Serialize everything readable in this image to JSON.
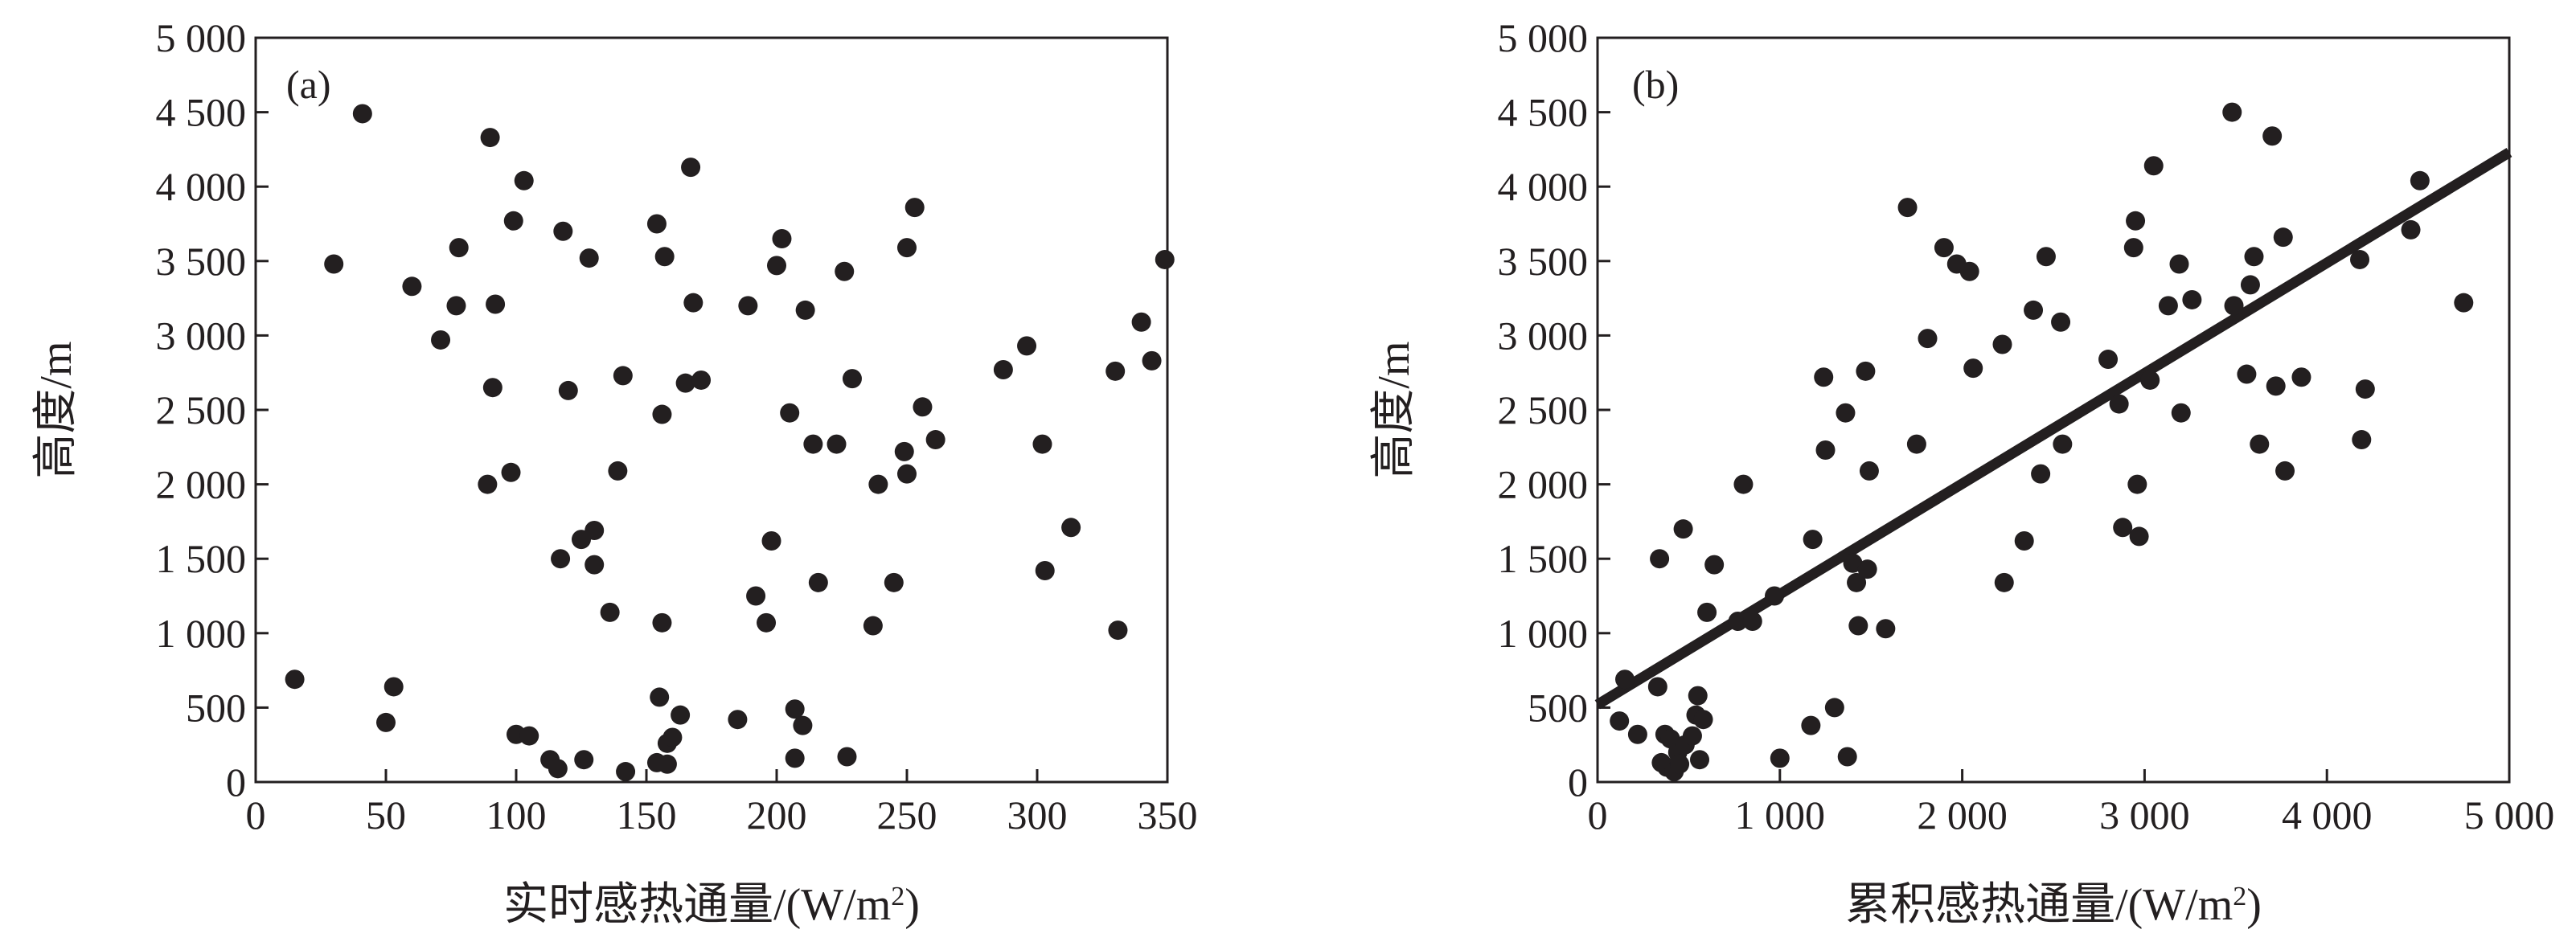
{
  "chart_data": [
    {
      "type": "scatter",
      "panel_label": "(a)",
      "xlabel_main": "实时感热通量/(W/m",
      "xlabel_sup": "2",
      "xlabel_tail": ")",
      "ylabel": "高度/m",
      "xlim": [
        0,
        350
      ],
      "ylim": [
        0,
        5000
      ],
      "xticks": [
        0,
        50,
        100,
        150,
        200,
        250,
        300,
        350
      ],
      "xtick_labels": [
        "0",
        "50",
        "100",
        "150",
        "200",
        "250",
        "300",
        "350"
      ],
      "yticks": [
        0,
        500,
        1000,
        1500,
        2000,
        2500,
        3000,
        3500,
        4000,
        4500,
        5000
      ],
      "ytick_labels": [
        "0",
        "500",
        "1 000",
        "1 500",
        "2 000",
        "2 500",
        "3 000",
        "3 500",
        "4 000",
        "4 500",
        "5 000"
      ],
      "grid": false,
      "points": [
        [
          15,
          690
        ],
        [
          30,
          3480
        ],
        [
          41,
          4490
        ],
        [
          50,
          400
        ],
        [
          53,
          640
        ],
        [
          60,
          3330
        ],
        [
          71,
          2970
        ],
        [
          77,
          3200
        ],
        [
          78,
          3590
        ],
        [
          89,
          2000
        ],
        [
          90,
          4330
        ],
        [
          91,
          2650
        ],
        [
          92,
          3210
        ],
        [
          98,
          2080
        ],
        [
          99,
          3770
        ],
        [
          100,
          320
        ],
        [
          103,
          4040
        ],
        [
          105,
          310
        ],
        [
          113,
          150
        ],
        [
          116,
          90
        ],
        [
          117,
          1500
        ],
        [
          118,
          3700
        ],
        [
          120,
          2630
        ],
        [
          125,
          1630
        ],
        [
          126,
          150
        ],
        [
          128,
          3520
        ],
        [
          130,
          1460
        ],
        [
          130,
          1690
        ],
        [
          136,
          1140
        ],
        [
          139,
          2090
        ],
        [
          141,
          2730
        ],
        [
          142,
          70
        ],
        [
          154,
          3750
        ],
        [
          154,
          130
        ],
        [
          155,
          570
        ],
        [
          156,
          2470
        ],
        [
          156,
          1070
        ],
        [
          157,
          3530
        ],
        [
          158,
          260
        ],
        [
          158,
          120
        ],
        [
          160,
          300
        ],
        [
          163,
          450
        ],
        [
          165,
          2680
        ],
        [
          167,
          4130
        ],
        [
          168,
          3220
        ],
        [
          171,
          2700
        ],
        [
          185,
          420
        ],
        [
          189,
          3200
        ],
        [
          192,
          1250
        ],
        [
          196,
          1070
        ],
        [
          198,
          1620
        ],
        [
          200,
          3470
        ],
        [
          202,
          3650
        ],
        [
          205,
          2480
        ],
        [
          207,
          490
        ],
        [
          207,
          160
        ],
        [
          210,
          380
        ],
        [
          211,
          3170
        ],
        [
          214,
          2270
        ],
        [
          216,
          1340
        ],
        [
          223,
          2270
        ],
        [
          226,
          3430
        ],
        [
          227,
          170
        ],
        [
          229,
          2710
        ],
        [
          237,
          1050
        ],
        [
          239,
          2000
        ],
        [
          245,
          1340
        ],
        [
          249,
          2220
        ],
        [
          250,
          3590
        ],
        [
          250,
          2070
        ],
        [
          253,
          3860
        ],
        [
          256,
          2520
        ],
        [
          261,
          2300
        ],
        [
          287,
          2770
        ],
        [
          296,
          2930
        ],
        [
          302,
          2270
        ],
        [
          303,
          1420
        ],
        [
          313,
          1710
        ],
        [
          330,
          2760
        ],
        [
          331,
          1020
        ],
        [
          340,
          3090
        ],
        [
          344,
          2830
        ],
        [
          349,
          3510
        ]
      ]
    },
    {
      "type": "scatter",
      "panel_label": "(b)",
      "xlabel_main": "累积感热通量/(W/m",
      "xlabel_sup": "2",
      "xlabel_tail": ")",
      "ylabel": "高度/m",
      "xlim": [
        0,
        5000
      ],
      "ylim": [
        0,
        5000
      ],
      "xticks": [
        0,
        1000,
        2000,
        3000,
        4000,
        5000
      ],
      "xtick_labels": [
        "0",
        "1 000",
        "2 000",
        "3 000",
        "4 000",
        "5 000"
      ],
      "yticks": [
        0,
        500,
        1000,
        1500,
        2000,
        2500,
        3000,
        3500,
        4000,
        4500,
        5000
      ],
      "ytick_labels": [
        "0",
        "500",
        "1 000",
        "1 500",
        "2 000",
        "2 500",
        "3 000",
        "3 500",
        "4 000",
        "4 500",
        "5 000"
      ],
      "grid": false,
      "fit_line": {
        "x": [
          0,
          5000
        ],
        "y": [
          520,
          4230
        ]
      },
      "points": [
        [
          120,
          410
        ],
        [
          150,
          690
        ],
        [
          220,
          320
        ],
        [
          330,
          640
        ],
        [
          340,
          1500
        ],
        [
          350,
          130
        ],
        [
          370,
          320
        ],
        [
          380,
          100
        ],
        [
          400,
          290
        ],
        [
          420,
          70
        ],
        [
          440,
          200
        ],
        [
          450,
          120
        ],
        [
          470,
          1700
        ],
        [
          480,
          250
        ],
        [
          520,
          310
        ],
        [
          540,
          450
        ],
        [
          550,
          580
        ],
        [
          560,
          150
        ],
        [
          580,
          420
        ],
        [
          600,
          1140
        ],
        [
          640,
          1460
        ],
        [
          770,
          1080
        ],
        [
          800,
          2000
        ],
        [
          850,
          1080
        ],
        [
          970,
          1250
        ],
        [
          1000,
          160
        ],
        [
          1170,
          380
        ],
        [
          1180,
          1630
        ],
        [
          1240,
          2720
        ],
        [
          1250,
          2230
        ],
        [
          1300,
          500
        ],
        [
          1360,
          2480
        ],
        [
          1370,
          170
        ],
        [
          1400,
          1470
        ],
        [
          1420,
          1340
        ],
        [
          1430,
          1050
        ],
        [
          1470,
          2760
        ],
        [
          1480,
          1430
        ],
        [
          1490,
          2090
        ],
        [
          1580,
          1030
        ],
        [
          1700,
          3860
        ],
        [
          1750,
          2270
        ],
        [
          1810,
          2980
        ],
        [
          1900,
          3590
        ],
        [
          1970,
          3480
        ],
        [
          2040,
          3430
        ],
        [
          2060,
          2780
        ],
        [
          2220,
          2940
        ],
        [
          2230,
          1340
        ],
        [
          2340,
          1620
        ],
        [
          2390,
          3170
        ],
        [
          2430,
          2070
        ],
        [
          2460,
          3530
        ],
        [
          2540,
          3090
        ],
        [
          2550,
          2270
        ],
        [
          2800,
          2840
        ],
        [
          2860,
          2540
        ],
        [
          2880,
          1710
        ],
        [
          2940,
          3590
        ],
        [
          2950,
          3770
        ],
        [
          2960,
          2000
        ],
        [
          2970,
          1650
        ],
        [
          3030,
          2700
        ],
        [
          3050,
          4140
        ],
        [
          3130,
          3200
        ],
        [
          3190,
          3480
        ],
        [
          3200,
          2480
        ],
        [
          3260,
          3240
        ],
        [
          3480,
          4500
        ],
        [
          3490,
          3200
        ],
        [
          3560,
          2740
        ],
        [
          3580,
          3340
        ],
        [
          3600,
          3530
        ],
        [
          3630,
          2270
        ],
        [
          3700,
          4340
        ],
        [
          3720,
          2660
        ],
        [
          3760,
          3660
        ],
        [
          3770,
          2090
        ],
        [
          3860,
          2720
        ],
        [
          4180,
          3510
        ],
        [
          4190,
          2300
        ],
        [
          4210,
          2640
        ],
        [
          4460,
          3710
        ],
        [
          4510,
          4040
        ],
        [
          4750,
          3220
        ]
      ]
    }
  ]
}
